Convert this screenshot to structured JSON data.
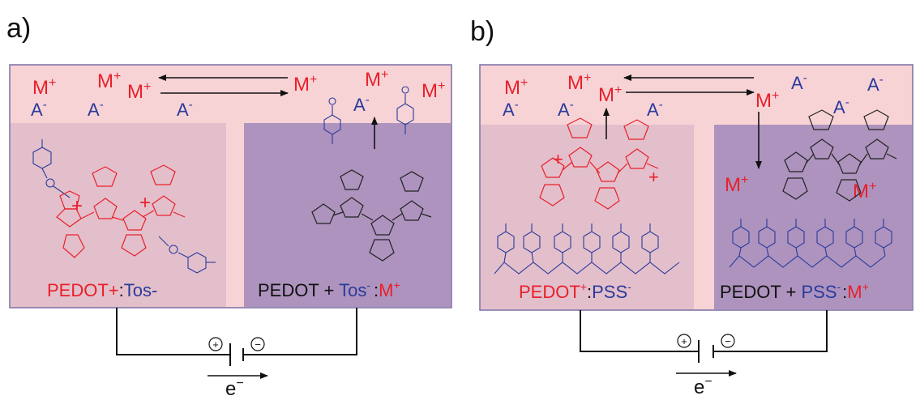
{
  "colors": {
    "electrolyte": "#f7d3d6",
    "oxidized_film": "#e3bfcb",
    "reduced_film": "#ad93be",
    "cation": "#e8202a",
    "anion": "#2a3b9b",
    "black": "#111111",
    "box_border": "#7a6fa3"
  },
  "panel_a": {
    "letter": "a)",
    "cations": [
      "M",
      "M",
      "M",
      "M",
      "M",
      "M"
    ],
    "cation_charge": "+",
    "anions": [
      "A",
      "A",
      "A",
      "A"
    ],
    "anion_charge": "-",
    "left_formula": {
      "pedot": "PEDOT+",
      "colon": ":",
      "counter": "Tos-"
    },
    "right_formula": {
      "pedot": "PEDOT",
      "plus": " + ",
      "counter": "Tos",
      "counter_charge": "-",
      "colon": ":",
      "cation": "M",
      "cation_charge": "+"
    },
    "battery_plus": "+",
    "battery_minus": "−",
    "electron": "e",
    "electron_charge": "−"
  },
  "panel_b": {
    "letter": "b)",
    "cations": [
      "M",
      "M",
      "M",
      "M",
      "M",
      "M"
    ],
    "cation_charge": "+",
    "anions": [
      "A",
      "A",
      "A",
      "A",
      "A"
    ],
    "anion_charge": "-",
    "left_formula": {
      "pedot": "PEDOT",
      "pedot_charge": "+",
      "colon": ":",
      "counter": "PSS",
      "counter_charge": "-"
    },
    "right_formula": {
      "pedot": "PEDOT",
      "plus": " + ",
      "counter": "PSS",
      "counter_charge": "-",
      "colon": ":",
      "cation": "M",
      "cation_charge": "+"
    },
    "battery_plus": "+",
    "battery_minus": "−",
    "electron": "e",
    "electron_charge": "−"
  }
}
